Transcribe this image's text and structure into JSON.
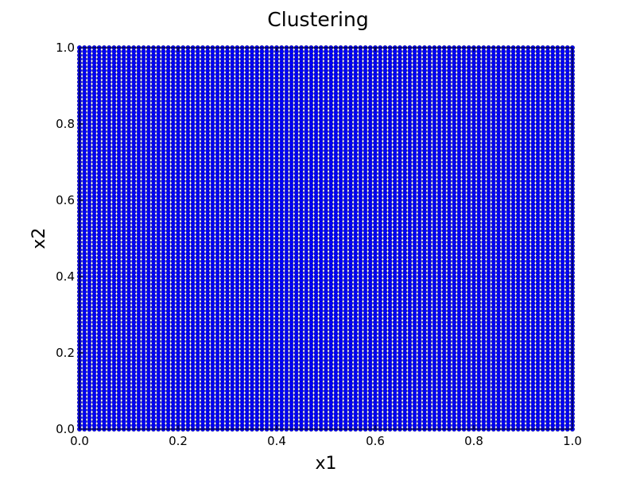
{
  "chart_data": {
    "type": "scatter",
    "title": "Clustering",
    "xlabel": "x1",
    "ylabel": "x2",
    "xlim": [
      0.0,
      1.0
    ],
    "ylim": [
      0.0,
      1.0
    ],
    "x_ticks": [
      "0.0",
      "0.2",
      "0.4",
      "0.6",
      "0.8",
      "1.0"
    ],
    "y_ticks": [
      "0.0",
      "0.2",
      "0.4",
      "0.6",
      "0.8",
      "1.0"
    ],
    "grid": false,
    "legend": "none",
    "series": [
      {
        "points": "uniform grid covering x in [0,1] and y in [0,1], step 0.01",
        "x_range": [
          0.0,
          1.0
        ],
        "y_range": [
          0.0,
          1.0
        ],
        "step": 0.01,
        "color": "#0000ff",
        "edge_color": "#000000",
        "marker": "circle"
      }
    ]
  }
}
